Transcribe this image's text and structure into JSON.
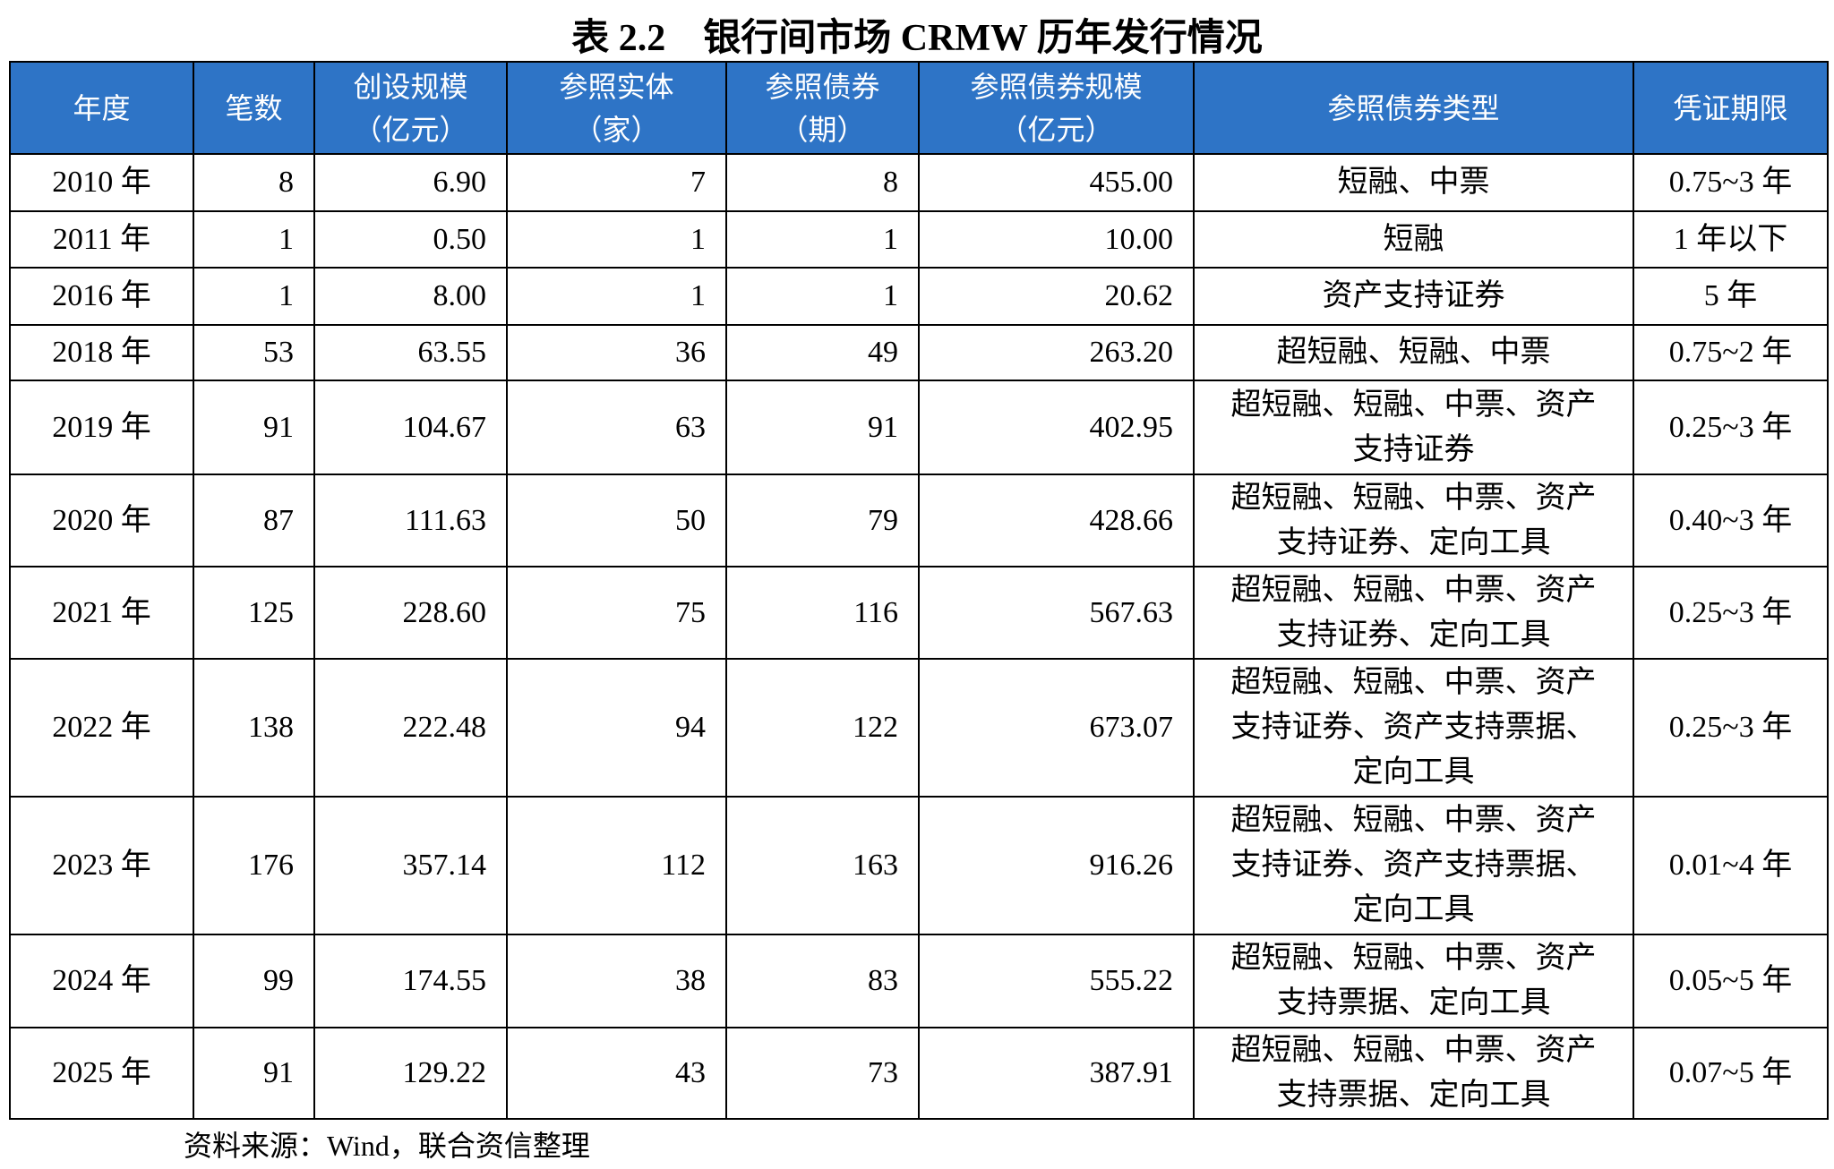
{
  "title": "表 2.2　银行间市场 CRMW 历年发行情况",
  "table": {
    "header": [
      "年度",
      "笔数",
      "创设规模\n（亿元）",
      "参照实体\n（家）",
      "参照债券\n（期）",
      "参照债券规模\n（亿元）",
      "参照债券类型",
      "凭证期限"
    ],
    "rows": [
      [
        "2010 年",
        "8",
        "6.90",
        "7",
        "8",
        "455.00",
        "短融、中票",
        "0.75~3 年"
      ],
      [
        "2011 年",
        "1",
        "0.50",
        "1",
        "1",
        "10.00",
        "短融",
        "1 年以下"
      ],
      [
        "2016 年",
        "1",
        "8.00",
        "1",
        "1",
        "20.62",
        "资产支持证券",
        "5 年"
      ],
      [
        "2018 年",
        "53",
        "63.55",
        "36",
        "49",
        "263.20",
        "超短融、短融、中票",
        "0.75~2 年"
      ],
      [
        "2019 年",
        "91",
        "104.67",
        "63",
        "91",
        "402.95",
        "超短融、短融、中票、资产支持证券",
        "0.25~3 年"
      ],
      [
        "2020 年",
        "87",
        "111.63",
        "50",
        "79",
        "428.66",
        "超短融、短融、中票、资产支持证券、定向工具",
        "0.40~3 年"
      ],
      [
        "2021 年",
        "125",
        "228.60",
        "75",
        "116",
        "567.63",
        "超短融、短融、中票、资产支持证券、定向工具",
        "0.25~3 年"
      ],
      [
        "2022 年",
        "138",
        "222.48",
        "94",
        "122",
        "673.07",
        "超短融、短融、中票、资产支持证券、资产支持票据、定向工具",
        "0.25~3 年"
      ],
      [
        "2023 年",
        "176",
        "357.14",
        "112",
        "163",
        "916.26",
        "超短融、短融、中票、资产支持证券、资产支持票据、定向工具",
        "0.01~4 年"
      ],
      [
        "2024 年",
        "99",
        "174.55",
        "38",
        "83",
        "555.22",
        "超短融、短融、中票、资产支持票据、定向工具",
        "0.05~5 年"
      ],
      [
        "2025 年",
        "91",
        "129.22",
        "43",
        "73",
        "387.91",
        "超短融、短融、中票、资产支持票据、定向工具",
        "0.07~5 年"
      ]
    ]
  },
  "source": "资料来源：Wind，联合资信整理"
}
